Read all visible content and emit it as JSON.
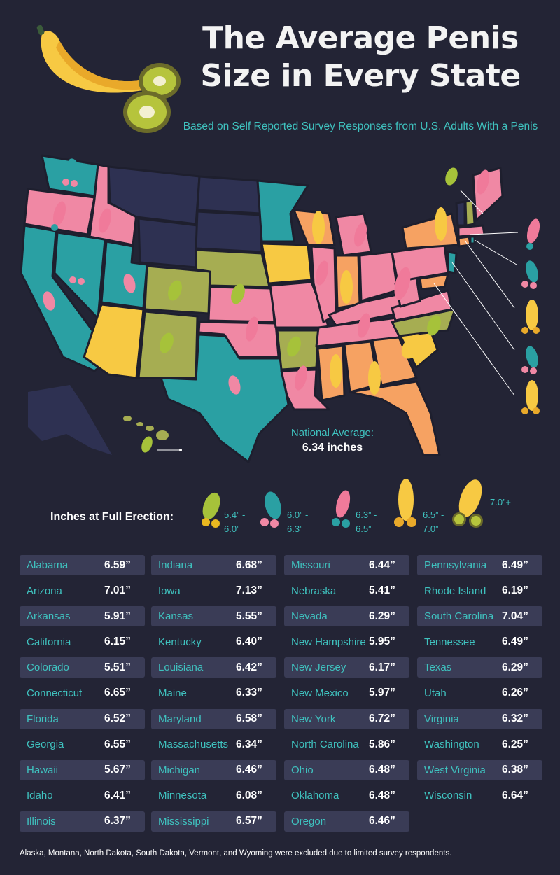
{
  "title_line1": "The Average Penis",
  "title_line2": "Size in Every State",
  "subtitle": "Based on Self Reported Survey Responses from U.S. Adults With a Penis",
  "national_average": {
    "label": "National Average:",
    "value": "6.34 inches"
  },
  "legend": {
    "title": "Inches at Full Erection:",
    "items": [
      {
        "icon": "pickle-icon",
        "range_line1": "5.4” -",
        "range_line2": "6.0”"
      },
      {
        "icon": "eggplant-icon",
        "range_line1": "6.0” -",
        "range_line2": "6.3”"
      },
      {
        "icon": "pepper-icon",
        "range_line1": "6.3” -",
        "range_line2": "6.5”"
      },
      {
        "icon": "corn-icon",
        "range_line1": "6.5” -",
        "range_line2": "7.0”"
      },
      {
        "icon": "banana-icon",
        "range_line1": "7.0”+",
        "range_line2": ""
      }
    ]
  },
  "colors": {
    "background": "#232435",
    "teal": "#2aa0a3",
    "pink": "#f088a4",
    "orange": "#f6a262",
    "yellow": "#f7c943",
    "olive": "#a6ad52",
    "excluded": "#2e3152",
    "accent_text": "#3fc2bf"
  },
  "columns": [
    [
      {
        "state": "Alabama",
        "value": "6.59”"
      },
      {
        "state": "Arizona",
        "value": "7.01”"
      },
      {
        "state": "Arkansas",
        "value": "5.91”"
      },
      {
        "state": "California",
        "value": "6.15”"
      },
      {
        "state": "Colorado",
        "value": "5.51”"
      },
      {
        "state": "Connecticut",
        "value": "6.65”"
      },
      {
        "state": "Florida",
        "value": "6.52”"
      },
      {
        "state": "Georgia",
        "value": "6.55”"
      },
      {
        "state": "Hawaii",
        "value": "5.67”"
      },
      {
        "state": "Idaho",
        "value": "6.41”"
      },
      {
        "state": "Illinois",
        "value": "6.37”"
      }
    ],
    [
      {
        "state": "Indiana",
        "value": "6.68”"
      },
      {
        "state": "Iowa",
        "value": "7.13”"
      },
      {
        "state": "Kansas",
        "value": "5.55”"
      },
      {
        "state": "Kentucky",
        "value": "6.40”"
      },
      {
        "state": "Louisiana",
        "value": "6.42”"
      },
      {
        "state": "Maine",
        "value": "6.33”"
      },
      {
        "state": "Maryland",
        "value": "6.58”"
      },
      {
        "state": "Massachusetts",
        "value": "6.34”"
      },
      {
        "state": "Michigan",
        "value": "6.46”"
      },
      {
        "state": "Minnesota",
        "value": "6.08”"
      },
      {
        "state": "Mississippi",
        "value": "6.57”"
      }
    ],
    [
      {
        "state": "Missouri",
        "value": "6.44”"
      },
      {
        "state": "Nebraska",
        "value": "5.41”"
      },
      {
        "state": "Nevada",
        "value": "6.29”"
      },
      {
        "state": "New Hampshire",
        "value": "5.95”"
      },
      {
        "state": "New Jersey",
        "value": "6.17”"
      },
      {
        "state": "New Mexico",
        "value": "5.97”"
      },
      {
        "state": "New York",
        "value": "6.72”"
      },
      {
        "state": "North Carolina",
        "value": "5.86”"
      },
      {
        "state": "Ohio",
        "value": "6.48”"
      },
      {
        "state": "Oklahoma",
        "value": "6.48”"
      },
      {
        "state": "Oregon",
        "value": "6.46”"
      }
    ],
    [
      {
        "state": "Pennsylvania",
        "value": "6.49”"
      },
      {
        "state": "Rhode Island",
        "value": "6.19”"
      },
      {
        "state": "South Carolina",
        "value": "7.04”"
      },
      {
        "state": "Tennessee",
        "value": "6.49”"
      },
      {
        "state": "Texas",
        "value": "6.29”"
      },
      {
        "state": "Utah",
        "value": "6.26”"
      },
      {
        "state": "Virginia",
        "value": "6.32”"
      },
      {
        "state": "Washington",
        "value": "6.25”"
      },
      {
        "state": "West Virginia",
        "value": "6.38”"
      },
      {
        "state": "Wisconsin",
        "value": "6.64”"
      }
    ]
  ],
  "footnote": "Alaska, Montana, North Dakota, South Dakota, Vermont, and Wyoming were excluded due to limited survey respondents."
}
